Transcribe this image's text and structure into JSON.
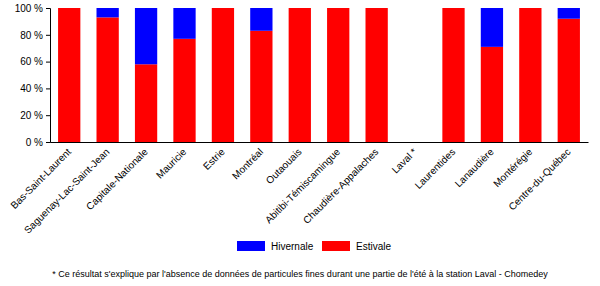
{
  "chart_data": {
    "type": "bar",
    "stacked": true,
    "grid": false,
    "legend": "bottom",
    "categories": [
      "Bas-Saint-Laurent",
      "Saguenay-Lac-Saint-Jean",
      "Capitale-Nationale",
      "Mauricie",
      "Estrie",
      "Montréal",
      "Outaouais",
      "Abitibi-Témiscamingue",
      "Chaudière-Appalaches",
      "Laval *",
      "Laurentides",
      "Lanaudière",
      "Montérégie",
      "Centre-du-Québec"
    ],
    "series": [
      {
        "name": "Hivernale",
        "color": "#0000ff",
        "values": [
          0,
          7,
          42,
          23,
          0,
          17,
          0,
          0,
          0,
          null,
          0,
          29,
          0,
          8
        ]
      },
      {
        "name": "Estivale",
        "color": "#ff0000",
        "values": [
          100,
          93,
          58,
          77,
          100,
          83,
          100,
          100,
          100,
          null,
          100,
          71,
          100,
          92
        ]
      }
    ],
    "ylim": [
      0,
      100
    ],
    "yticks": [
      {
        "value": 0,
        "label": "0 %"
      },
      {
        "value": 20,
        "label": "20 %"
      },
      {
        "value": 40,
        "label": "40 %"
      },
      {
        "value": 60,
        "label": "60 %"
      },
      {
        "value": 80,
        "label": "80 %"
      },
      {
        "value": 100,
        "label": "100 %"
      }
    ],
    "annotations": [
      "* Ce résultat s'explique par l'absence de données de particules fines durant une partie de l'été à la station Laval - Chomedey"
    ]
  }
}
